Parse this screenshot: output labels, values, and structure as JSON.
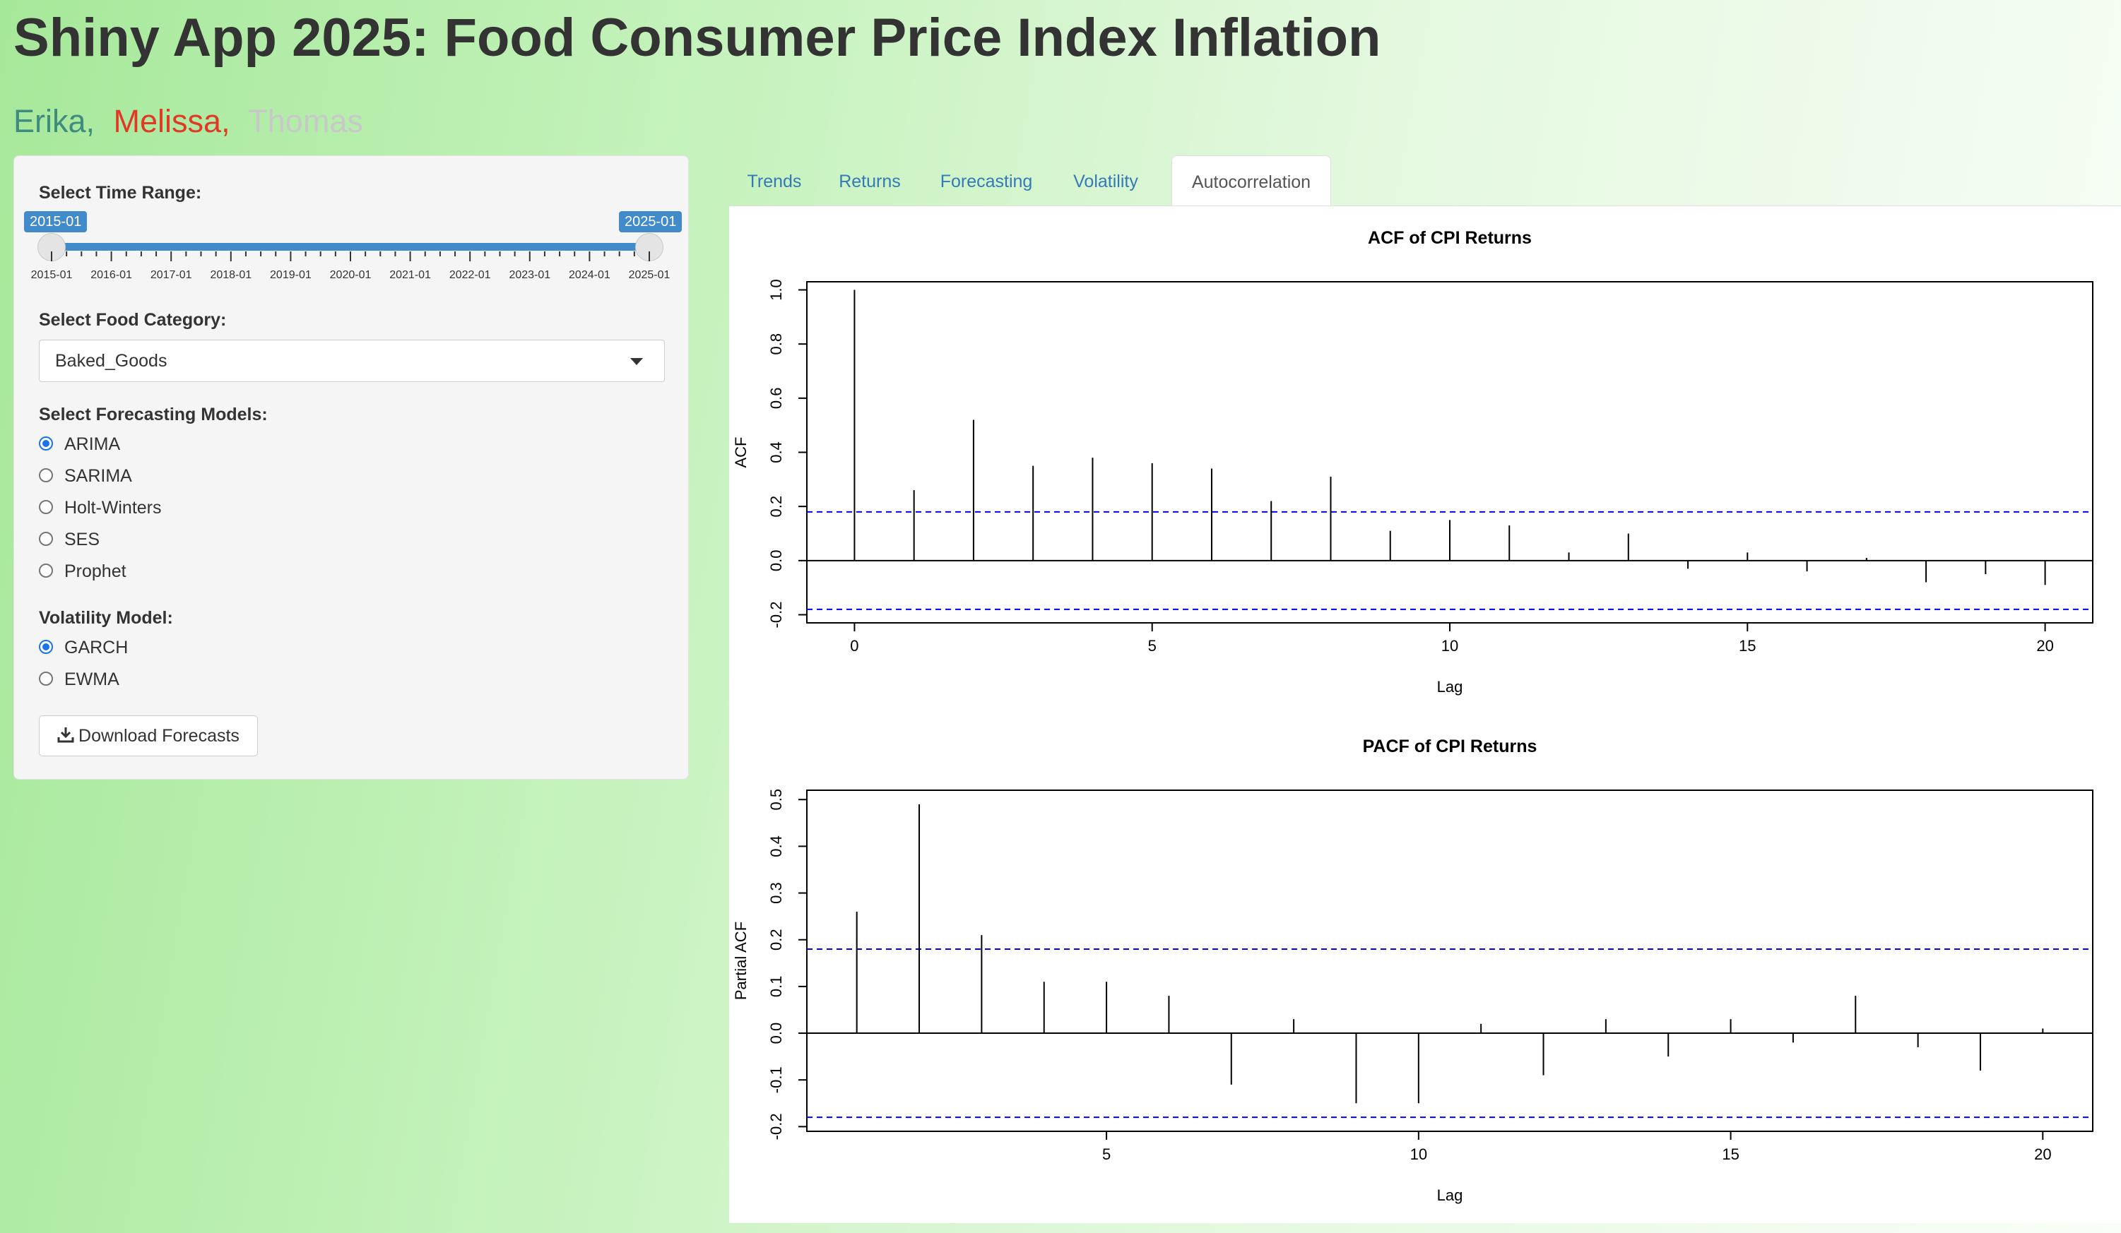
{
  "header": {
    "title": "Shiny App 2025: Food Consumer Price Index Inflation",
    "authors": [
      "Erika,",
      "Melissa,",
      "Thomas"
    ]
  },
  "colors": {
    "author_1": "#3e8c80",
    "author_2": "#e03a26",
    "author_3": "#c8c8c8",
    "accent": "#428bca",
    "ci_line": "#0000ff"
  },
  "sidebar": {
    "time_range_label": "Select Time Range:",
    "range_start": "2015-01",
    "range_end": "2025-01",
    "range_ticks": [
      "2015-01",
      "2016-01",
      "2017-01",
      "2018-01",
      "2019-01",
      "2020-01",
      "2021-01",
      "2022-01",
      "2023-01",
      "2024-01",
      "2025-01"
    ],
    "category_label": "Select Food Category:",
    "category_value": "Baked_Goods",
    "models_label": "Select Forecasting Models:",
    "models": [
      {
        "label": "ARIMA",
        "checked": true
      },
      {
        "label": "SARIMA",
        "checked": false
      },
      {
        "label": "Holt-Winters",
        "checked": false
      },
      {
        "label": "SES",
        "checked": false
      },
      {
        "label": "Prophet",
        "checked": false
      }
    ],
    "volatility_label": "Volatility Model:",
    "volatility": [
      {
        "label": "GARCH",
        "checked": true
      },
      {
        "label": "EWMA",
        "checked": false
      }
    ],
    "download_label": "Download Forecasts",
    "download_icon": "download-icon"
  },
  "tabs": [
    {
      "label": "Trends",
      "active": false
    },
    {
      "label": "Returns",
      "active": false
    },
    {
      "label": "Forecasting",
      "active": false
    },
    {
      "label": "Volatility",
      "active": false
    },
    {
      "label": "Autocorrelation",
      "active": true
    }
  ],
  "chart_data": [
    {
      "type": "bar",
      "title": "ACF of CPI Returns",
      "xlabel": "Lag",
      "ylabel": "ACF",
      "x": [
        0,
        1,
        2,
        3,
        4,
        5,
        6,
        7,
        8,
        9,
        10,
        11,
        12,
        13,
        14,
        15,
        16,
        17,
        18,
        19,
        20
      ],
      "values": [
        1.0,
        0.26,
        0.52,
        0.35,
        0.38,
        0.36,
        0.34,
        0.22,
        0.31,
        0.11,
        0.15,
        0.13,
        0.03,
        0.1,
        -0.03,
        0.03,
        -0.04,
        0.01,
        -0.08,
        -0.05,
        -0.09
      ],
      "ci": 0.18,
      "xticks": [
        0,
        5,
        10,
        15,
        20
      ],
      "yticks": [
        -0.2,
        0.0,
        0.2,
        0.4,
        0.6,
        0.8,
        1.0
      ],
      "xlim": [
        -0.8,
        20.8
      ],
      "ylim": [
        -0.23,
        1.03
      ]
    },
    {
      "type": "bar",
      "title": "PACF of CPI Returns",
      "xlabel": "Lag",
      "ylabel": "Partial ACF",
      "x": [
        1,
        2,
        3,
        4,
        5,
        6,
        7,
        8,
        9,
        10,
        11,
        12,
        13,
        14,
        15,
        16,
        17,
        18,
        19,
        20
      ],
      "values": [
        0.26,
        0.49,
        0.21,
        0.11,
        0.11,
        0.08,
        -0.11,
        0.03,
        -0.15,
        -0.15,
        0.02,
        -0.09,
        0.03,
        -0.05,
        0.03,
        -0.02,
        0.08,
        -0.03,
        -0.08,
        0.01
      ],
      "ci": 0.18,
      "xticks": [
        5,
        10,
        15,
        20
      ],
      "yticks": [
        -0.2,
        -0.1,
        0.0,
        0.1,
        0.2,
        0.3,
        0.4,
        0.5
      ],
      "xlim": [
        0.2,
        20.8
      ],
      "ylim": [
        -0.21,
        0.52
      ]
    }
  ]
}
